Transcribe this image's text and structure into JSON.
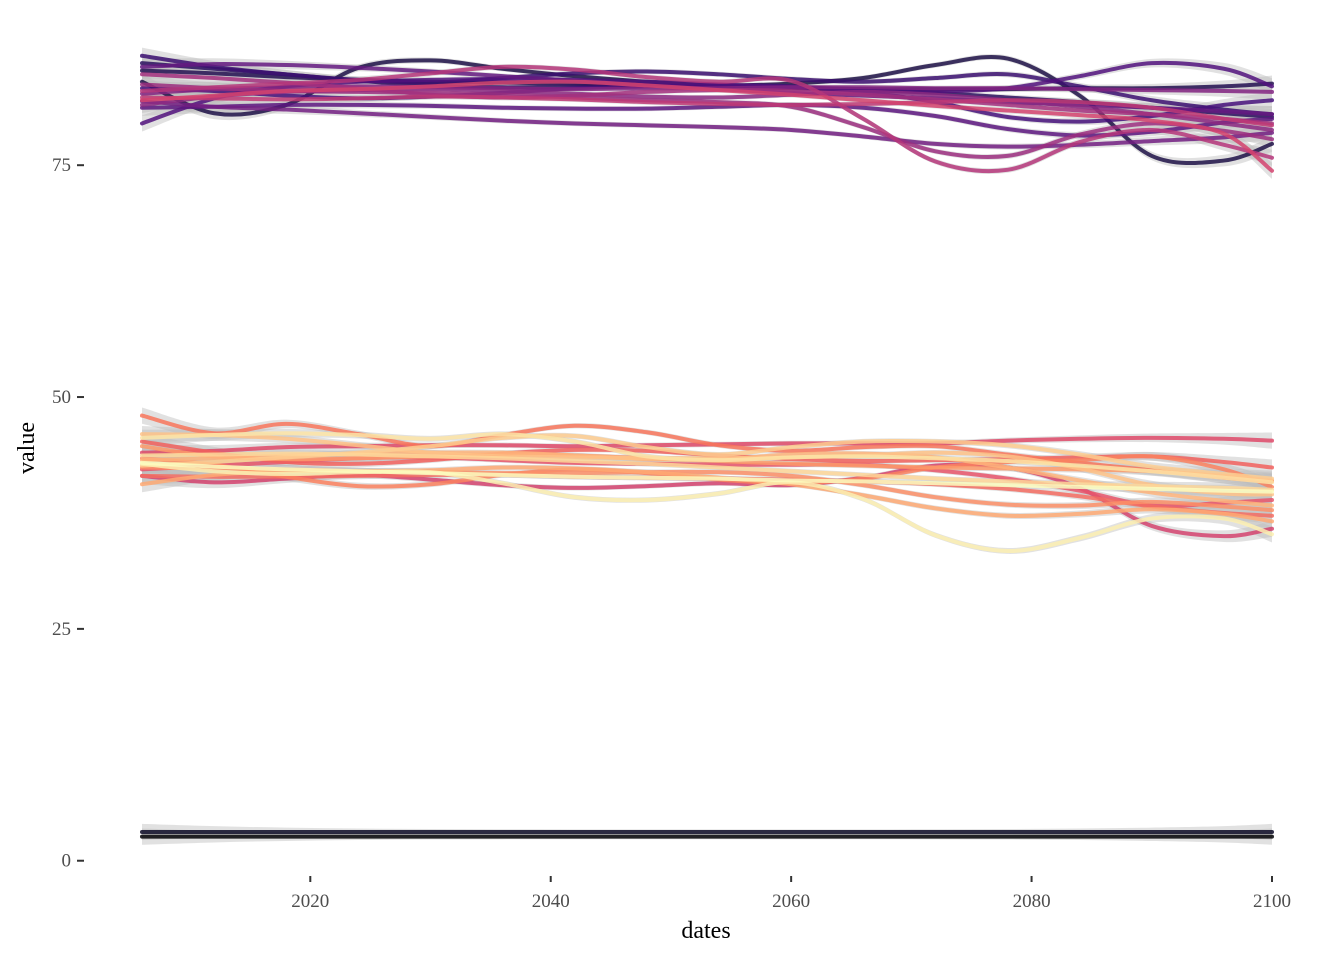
{
  "chart_data": {
    "type": "line",
    "xlabel": "dates",
    "ylabel": "value",
    "xlim": [
      2006,
      2100
    ],
    "ylim": [
      -1,
      88.5
    ],
    "x_ticks": [
      2020,
      2040,
      2060,
      2080,
      2100
    ],
    "y_ticks": [
      0,
      25,
      50,
      75
    ],
    "grid": false,
    "legend": "none",
    "x": [
      2006,
      2012,
      2018,
      2024,
      2030,
      2036,
      2042,
      2048,
      2054,
      2060,
      2066,
      2072,
      2078,
      2084,
      2090,
      2096,
      2100
    ],
    "series": [
      {
        "color": "#000004",
        "values": [
          2.6,
          2.6,
          2.6,
          2.6,
          2.6,
          2.6,
          2.6,
          2.6,
          2.6,
          2.6,
          2.6,
          2.6,
          2.6,
          2.6,
          2.6,
          2.6,
          2.6
        ]
      },
      {
        "color": "#0b0924",
        "values": [
          3.1,
          3.1,
          3.1,
          3.1,
          3.1,
          3.1,
          3.1,
          3.1,
          3.1,
          3.1,
          3.1,
          3.1,
          3.1,
          3.1,
          3.1,
          3.1,
          3.1
        ]
      },
      {
        "color": "#1d1147",
        "values": [
          84.0,
          80.6,
          81.5,
          85.5,
          86.3,
          85.4,
          84.6,
          84.0,
          83.6,
          83.8,
          84.4,
          85.8,
          86.5,
          82.5,
          76.0,
          75.5,
          77.3
        ]
      },
      {
        "color": "#231151",
        "values": [
          85.2,
          84.9,
          84.5,
          84.2,
          84.0,
          83.9,
          83.8,
          83.6,
          83.4,
          83.3,
          83.2,
          83.2,
          83.2,
          83.3,
          83.3,
          83.5,
          83.8
        ]
      },
      {
        "color": "#2c115f",
        "values": [
          86.0,
          85.4,
          84.8,
          84.1,
          83.6,
          83.4,
          83.5,
          83.6,
          83.5,
          83.3,
          83.1,
          82.8,
          82.3,
          81.8,
          81.2,
          80.6,
          80.2
        ]
      },
      {
        "color": "#3b0f70",
        "values": [
          86.8,
          85.6,
          84.8,
          84.2,
          83.9,
          84.4,
          84.9,
          85.1,
          84.8,
          84.3,
          84.0,
          84.4,
          84.8,
          83.5,
          82.0,
          81.0,
          80.5
        ]
      },
      {
        "color": "#45107a",
        "values": [
          83.3,
          83.0,
          82.5,
          82.2,
          82.4,
          82.8,
          83.3,
          83.5,
          83.6,
          83.5,
          82.9,
          81.8,
          80.2,
          79.7,
          80.3,
          81.5,
          82.0
        ]
      },
      {
        "color": "#51127c",
        "values": [
          79.5,
          82.2,
          83.5,
          84.0,
          84.2,
          84.3,
          84.2,
          84.0,
          83.7,
          83.4,
          83.2,
          83.0,
          83.3,
          84.6,
          86.0,
          85.4,
          83.5
        ]
      },
      {
        "color": "#5c167f",
        "values": [
          81.2,
          81.3,
          81.5,
          81.5,
          81.4,
          81.2,
          81.1,
          81.1,
          81.3,
          81.5,
          81.2,
          80.3,
          78.9,
          78.2,
          78.6,
          79.6,
          80.0
        ]
      },
      {
        "color": "#641a80",
        "values": [
          85.6,
          85.9,
          85.8,
          85.5,
          85.1,
          84.6,
          84.1,
          83.6,
          83.2,
          82.8,
          82.5,
          82.2,
          81.8,
          81.5,
          81.2,
          80.8,
          80.5
        ]
      },
      {
        "color": "#721f81",
        "values": [
          81.9,
          81.3,
          81.0,
          80.6,
          80.2,
          79.8,
          79.5,
          79.3,
          79.1,
          78.8,
          78.1,
          77.3,
          77.0,
          77.2,
          77.6,
          78.0,
          78.5
        ]
      },
      {
        "color": "#822581",
        "values": [
          82.7,
          83.2,
          83.4,
          83.5,
          83.4,
          83.3,
          83.2,
          83.3,
          83.3,
          83.4,
          83.4,
          83.3,
          83.3,
          83.2,
          83.1,
          83.0,
          82.9
        ]
      },
      {
        "color": "#8c2981",
        "values": [
          81.5,
          82.4,
          82.9,
          83.1,
          83.2,
          83.0,
          82.7,
          82.4,
          82.3,
          82.6,
          82.9,
          82.6,
          82.0,
          81.3,
          80.5,
          79.5,
          78.8
        ]
      },
      {
        "color": "#9b2e7f",
        "values": [
          83.7,
          83.3,
          83.0,
          82.9,
          82.8,
          82.6,
          82.3,
          82.0,
          81.8,
          81.3,
          79.1,
          76.5,
          76.0,
          78.3,
          79.5,
          78.7,
          77.8
        ]
      },
      {
        "color": "#a3307e",
        "values": [
          84.8,
          84.4,
          83.9,
          83.3,
          82.6,
          82.3,
          82.5,
          82.9,
          83.1,
          83.0,
          82.6,
          82.1,
          81.5,
          80.9,
          80.5,
          80.0,
          79.5
        ]
      },
      {
        "color": "#b5367a",
        "values": [
          83.0,
          83.4,
          83.8,
          84.2,
          84.9,
          85.6,
          85.3,
          84.5,
          84.0,
          84.1,
          80.0,
          75.4,
          74.5,
          77.5,
          78.8,
          77.2,
          75.8
        ]
      },
      {
        "color": "#c03a76",
        "values": [
          82.3,
          82.2,
          82.1,
          82.2,
          82.4,
          82.3,
          82.1,
          81.8,
          81.6,
          81.5,
          81.6,
          81.8,
          82.0,
          81.8,
          81.2,
          80.0,
          79.3
        ]
      },
      {
        "color": "#d3436e",
        "values": [
          82.0,
          82.5,
          83.0,
          83.2,
          83.5,
          83.9,
          84.0,
          83.6,
          83.1,
          82.6,
          82.0,
          81.4,
          80.9,
          80.4,
          79.8,
          78.4,
          74.4
        ]
      },
      {
        "color": "#d3436e",
        "values": [
          41.5,
          40.8,
          41.2,
          41.6,
          41.1,
          40.5,
          40.2,
          40.4,
          40.7,
          40.5,
          41.3,
          42.6,
          42.4,
          40.2,
          36.1,
          35.0,
          35.8
        ]
      },
      {
        "color": "#de4968",
        "values": [
          44.0,
          44.2,
          44.6,
          44.7,
          44.8,
          44.8,
          44.7,
          44.8,
          44.9,
          45.0,
          45.0,
          45.0,
          45.3,
          45.5,
          45.6,
          45.5,
          45.3
        ]
      },
      {
        "color": "#e8556b",
        "values": [
          42.2,
          42.6,
          43.0,
          43.4,
          43.5,
          43.2,
          42.9,
          42.8,
          42.7,
          42.7,
          42.7,
          42.1,
          41.2,
          39.9,
          38.3,
          38.6,
          38.9
        ]
      },
      {
        "color": "#f1605d",
        "values": [
          45.2,
          44.0,
          43.0,
          42.8,
          43.2,
          43.9,
          44.3,
          44.2,
          43.7,
          43.3,
          43.1,
          43.2,
          43.3,
          43.5,
          43.6,
          43.0,
          42.4
        ]
      },
      {
        "color": "#f36c61",
        "values": [
          41.5,
          41.4,
          41.4,
          41.5,
          41.6,
          41.6,
          41.4,
          41.3,
          41.2,
          41.1,
          40.9,
          40.6,
          40.1,
          39.3,
          38.2,
          37.5,
          37.2
        ]
      },
      {
        "color": "#f8765c",
        "values": [
          48.0,
          46.1,
          47.1,
          46.0,
          44.7,
          45.9,
          46.9,
          46.2,
          44.8,
          44.2,
          44.6,
          44.7,
          43.8,
          42.9,
          42.1,
          41.3,
          40.9
        ]
      },
      {
        "color": "#fa815f",
        "values": [
          43.4,
          42.7,
          41.4,
          40.4,
          40.6,
          41.6,
          42.2,
          41.8,
          41.1,
          40.7,
          41.2,
          42.4,
          43.0,
          43.2,
          43.6,
          42.2,
          40.3
        ]
      },
      {
        "color": "#fb8f67",
        "values": [
          42.4,
          42.3,
          42.2,
          42.0,
          41.9,
          41.8,
          41.8,
          41.9,
          41.9,
          41.5,
          40.5,
          39.2,
          38.4,
          38.3,
          38.7,
          38.2,
          37.8
        ]
      },
      {
        "color": "#fd9a6a",
        "values": [
          44.7,
          43.6,
          43.3,
          43.4,
          43.6,
          43.8,
          43.7,
          43.4,
          43.1,
          42.8,
          42.6,
          42.4,
          42.3,
          42.2,
          42.0,
          41.5,
          41.0
        ]
      },
      {
        "color": "#fea973",
        "values": [
          40.6,
          41.6,
          42.0,
          42.0,
          42.1,
          42.4,
          42.3,
          41.9,
          41.3,
          40.6,
          39.4,
          38.0,
          37.2,
          37.4,
          37.9,
          37.4,
          36.6
        ]
      },
      {
        "color": "#feb47b",
        "values": [
          43.2,
          43.4,
          43.7,
          43.9,
          44.0,
          44.0,
          43.7,
          43.3,
          43.3,
          43.8,
          43.9,
          43.5,
          42.4,
          41.0,
          39.7,
          38.8,
          38.3
        ]
      },
      {
        "color": "#fec287",
        "values": [
          46.0,
          45.9,
          45.5,
          44.8,
          44.0,
          43.6,
          43.5,
          43.4,
          43.4,
          43.5,
          43.7,
          44.0,
          43.6,
          42.3,
          40.5,
          39.6,
          39.5
        ]
      },
      {
        "color": "#fecc8f",
        "values": [
          42.6,
          43.0,
          43.5,
          44.0,
          44.7,
          45.6,
          45.8,
          44.6,
          43.8,
          44.6,
          45.2,
          45.2,
          44.8,
          43.8,
          42.5,
          41.7,
          41.2
        ]
      },
      {
        "color": "#fed799",
        "values": [
          43.7,
          43.8,
          43.9,
          43.8,
          43.6,
          43.4,
          43.1,
          42.8,
          42.4,
          42.0,
          41.6,
          41.2,
          40.9,
          40.6,
          40.4,
          40.2,
          40.0
        ]
      },
      {
        "color": "#fde4a6",
        "values": [
          45.6,
          45.9,
          46.1,
          45.9,
          45.5,
          46.0,
          45.2,
          43.6,
          43.2,
          43.5,
          43.6,
          43.4,
          43.1,
          42.6,
          42.0,
          41.3,
          40.8
        ]
      },
      {
        "color": "#fcefb1",
        "values": [
          42.8,
          42.0,
          41.7,
          41.9,
          41.9,
          40.7,
          39.2,
          38.9,
          39.6,
          40.8,
          39.0,
          35.1,
          33.4,
          34.8,
          36.9,
          36.9,
          35.2
        ]
      },
      {
        "color": "#fcfdbf",
        "values": [
          42.9,
          42.5,
          42.2,
          42.0,
          41.8,
          41.6,
          41.4,
          41.3,
          41.2,
          41.0,
          40.9,
          40.7,
          40.5,
          40.3,
          40.1,
          39.9,
          39.8
        ]
      }
    ]
  }
}
